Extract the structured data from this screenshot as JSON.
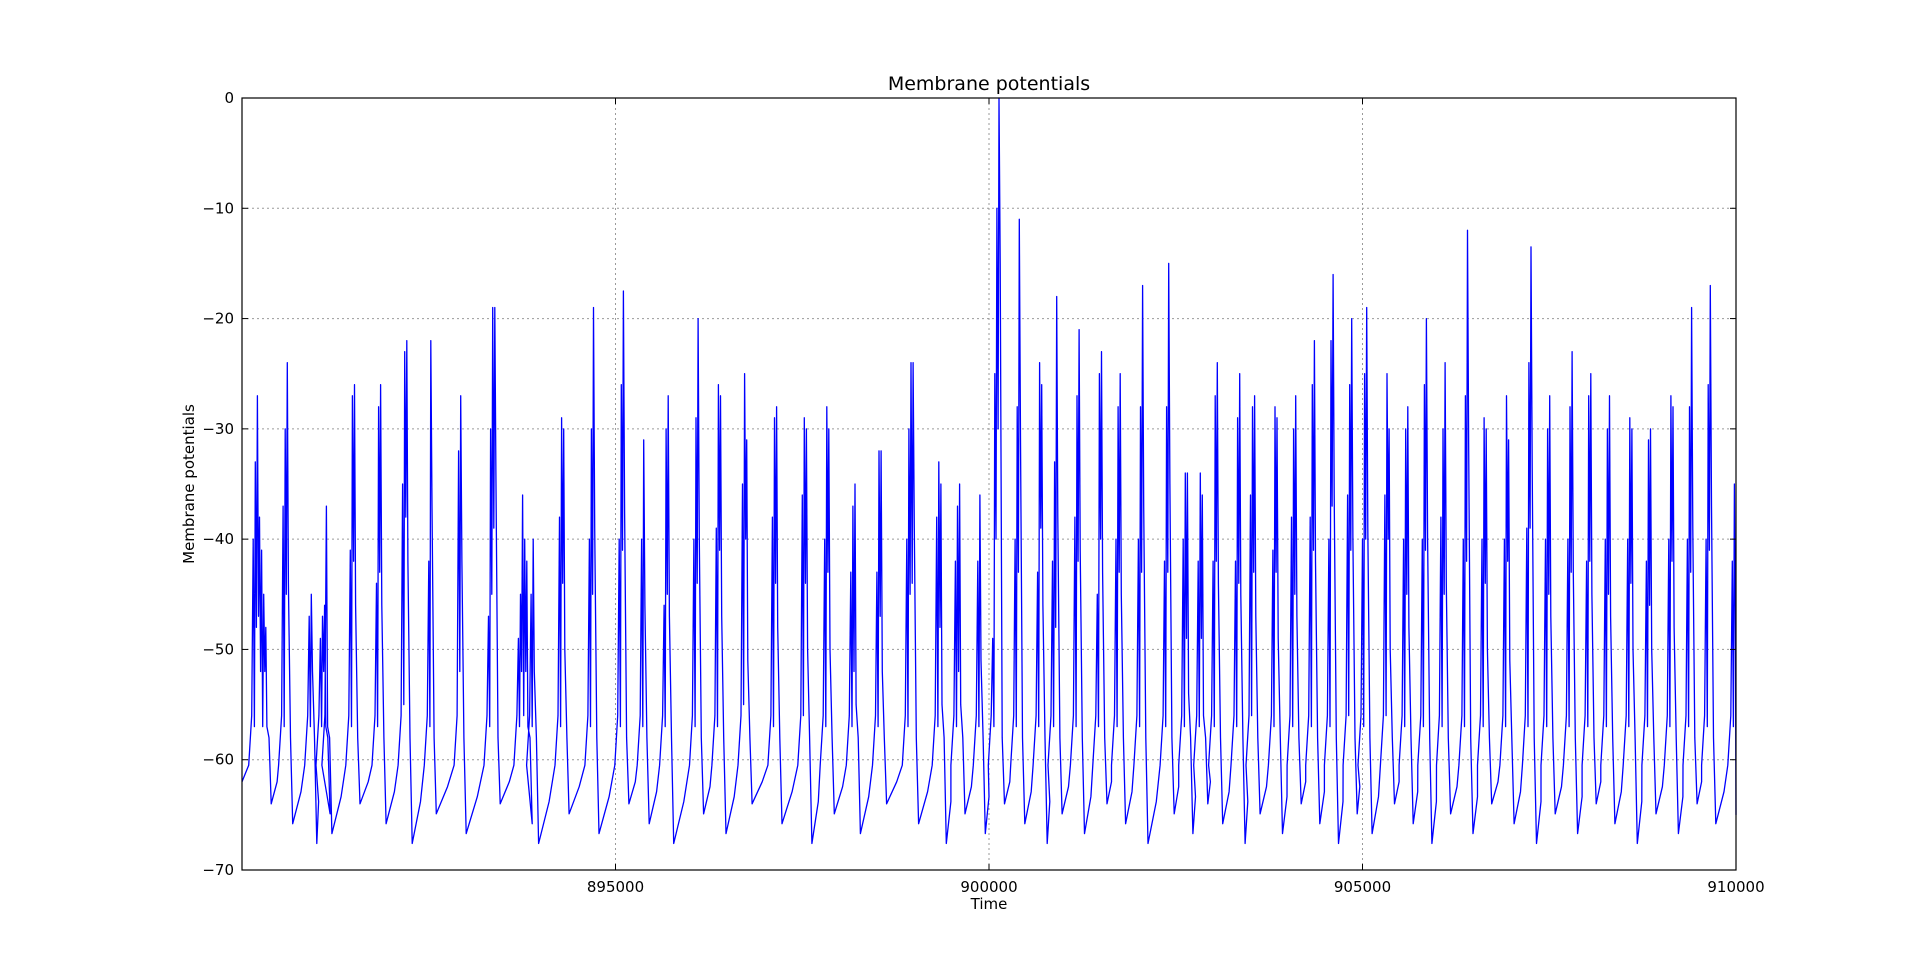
{
  "chart_data": {
    "type": "line",
    "title": "Membrane potentials",
    "xlabel": "Time",
    "ylabel": "Membrane potentials",
    "xlim": [
      890000,
      910000
    ],
    "ylim": [
      -70,
      0
    ],
    "xticks": [
      895000,
      900000,
      905000,
      910000
    ],
    "yticks": [
      0,
      -10,
      -20,
      -30,
      -40,
      -50,
      -60,
      -70
    ],
    "xtick_labels": [
      "895000",
      "900000",
      "905000",
      "910000"
    ],
    "ytick_labels": [
      "0",
      "−10",
      "−20",
      "−30",
      "−40",
      "−50",
      "−60",
      "−70"
    ],
    "grid": true,
    "line_color": "#0000ff",
    "grid_color": "#9a9a9a",
    "baseline": -62,
    "spike_bursts": [
      [
        890150,
        [
          -40,
          -33,
          -27,
          -38,
          -41,
          -45,
          -48
        ]
      ],
      [
        890550,
        [
          -37,
          -30,
          -24
        ]
      ],
      [
        890900,
        [
          -47,
          -45
        ]
      ],
      [
        891050,
        [
          -49,
          -47,
          -46
        ]
      ],
      [
        891130,
        [
          -37
        ]
      ],
      [
        891450,
        [
          -41,
          -27,
          -26
        ]
      ],
      [
        891800,
        [
          -44,
          -28,
          -26
        ]
      ],
      [
        892150,
        [
          -35,
          -23,
          -22
        ]
      ],
      [
        892500,
        [
          -42,
          -22
        ]
      ],
      [
        892900,
        [
          -32,
          -27
        ]
      ],
      [
        893300,
        [
          -47,
          -30,
          -19,
          -19
        ]
      ],
      [
        893700,
        [
          -49,
          -45,
          -36,
          -40,
          -42
        ]
      ],
      [
        893870,
        [
          -45,
          -40
        ]
      ],
      [
        894250,
        [
          -38,
          -29,
          -30
        ]
      ],
      [
        894650,
        [
          -40,
          -30,
          -19
        ]
      ],
      [
        895050,
        [
          -40,
          -26,
          -17.5
        ]
      ],
      [
        895350,
        [
          -40,
          -31
        ]
      ],
      [
        895650,
        [
          -46,
          -30,
          -27
        ]
      ],
      [
        896050,
        [
          -40,
          -29,
          -20
        ]
      ],
      [
        896350,
        [
          -39,
          -26,
          -27
        ]
      ],
      [
        896700,
        [
          -35,
          -25,
          -31
        ]
      ],
      [
        897100,
        [
          -38,
          -29,
          -28
        ]
      ],
      [
        897500,
        [
          -36,
          -29,
          -30
        ]
      ],
      [
        897800,
        [
          -40,
          -28,
          -30
        ]
      ],
      [
        898150,
        [
          -43,
          -37,
          -35
        ]
      ],
      [
        898500,
        [
          -43,
          -32,
          -32
        ]
      ],
      [
        898900,
        [
          -40,
          -30,
          -24,
          -24
        ]
      ],
      [
        899300,
        [
          -38,
          -33,
          -35
        ]
      ],
      [
        899550,
        [
          -42,
          -37,
          -35
        ]
      ],
      [
        899850,
        [
          -42,
          -36
        ]
      ],
      [
        900050,
        [
          -49,
          -25,
          -10,
          0
        ]
      ],
      [
        900350,
        [
          -40,
          -28,
          -11
        ]
      ],
      [
        900650,
        [
          -43,
          -24,
          -26
        ]
      ],
      [
        900850,
        [
          -42,
          -33,
          -18
        ]
      ],
      [
        901150,
        [
          -38,
          -27,
          -21
        ]
      ],
      [
        901450,
        [
          -45,
          -25,
          -23
        ]
      ],
      [
        901700,
        [
          -40,
          -28,
          -25
        ]
      ],
      [
        902000,
        [
          -40,
          -28,
          -17
        ]
      ],
      [
        902350,
        [
          -42,
          -28,
          -15
        ]
      ],
      [
        902600,
        [
          -40,
          -34,
          -34
        ]
      ],
      [
        902800,
        [
          -42,
          -34,
          -36
        ]
      ],
      [
        903000,
        [
          -42,
          -27,
          -24
        ]
      ],
      [
        903300,
        [
          -42,
          -29,
          -25
        ]
      ],
      [
        903500,
        [
          -36,
          -28,
          -27
        ]
      ],
      [
        903800,
        [
          -41,
          -28,
          -29
        ]
      ],
      [
        904050,
        [
          -38,
          -30,
          -27
        ]
      ],
      [
        904300,
        [
          -38,
          -26,
          -22
        ]
      ],
      [
        904550,
        [
          -40,
          -22,
          -16
        ]
      ],
      [
        904800,
        [
          -36,
          -26,
          -20
        ]
      ],
      [
        905000,
        [
          -40,
          -25,
          -19
        ]
      ],
      [
        905300,
        [
          -36,
          -25,
          -30
        ]
      ],
      [
        905550,
        [
          -40,
          -30,
          -28
        ]
      ],
      [
        905800,
        [
          -40,
          -26,
          -20
        ]
      ],
      [
        906050,
        [
          -38,
          -30,
          -24
        ]
      ],
      [
        906350,
        [
          -40,
          -27,
          -12
        ]
      ],
      [
        906600,
        [
          -40,
          -29,
          -30
        ]
      ],
      [
        906900,
        [
          -40,
          -27,
          -31
        ]
      ],
      [
        907200,
        [
          -39,
          -24,
          -13.5
        ]
      ],
      [
        907450,
        [
          -40,
          -30,
          -27
        ]
      ],
      [
        907750,
        [
          -40,
          -28,
          -23
        ]
      ],
      [
        908000,
        [
          -42,
          -27,
          -25
        ]
      ],
      [
        908250,
        [
          -40,
          -30,
          -27
        ]
      ],
      [
        908550,
        [
          -40,
          -29,
          -30
        ]
      ],
      [
        908800,
        [
          -42,
          -31,
          -30
        ]
      ],
      [
        909100,
        [
          -40,
          -27,
          -28
        ]
      ],
      [
        909350,
        [
          -40,
          -28,
          -19
        ]
      ],
      [
        909600,
        [
          -40,
          -26,
          -17
        ]
      ],
      [
        909950,
        [
          -42,
          -35,
          -26,
          -31
        ]
      ]
    ]
  }
}
